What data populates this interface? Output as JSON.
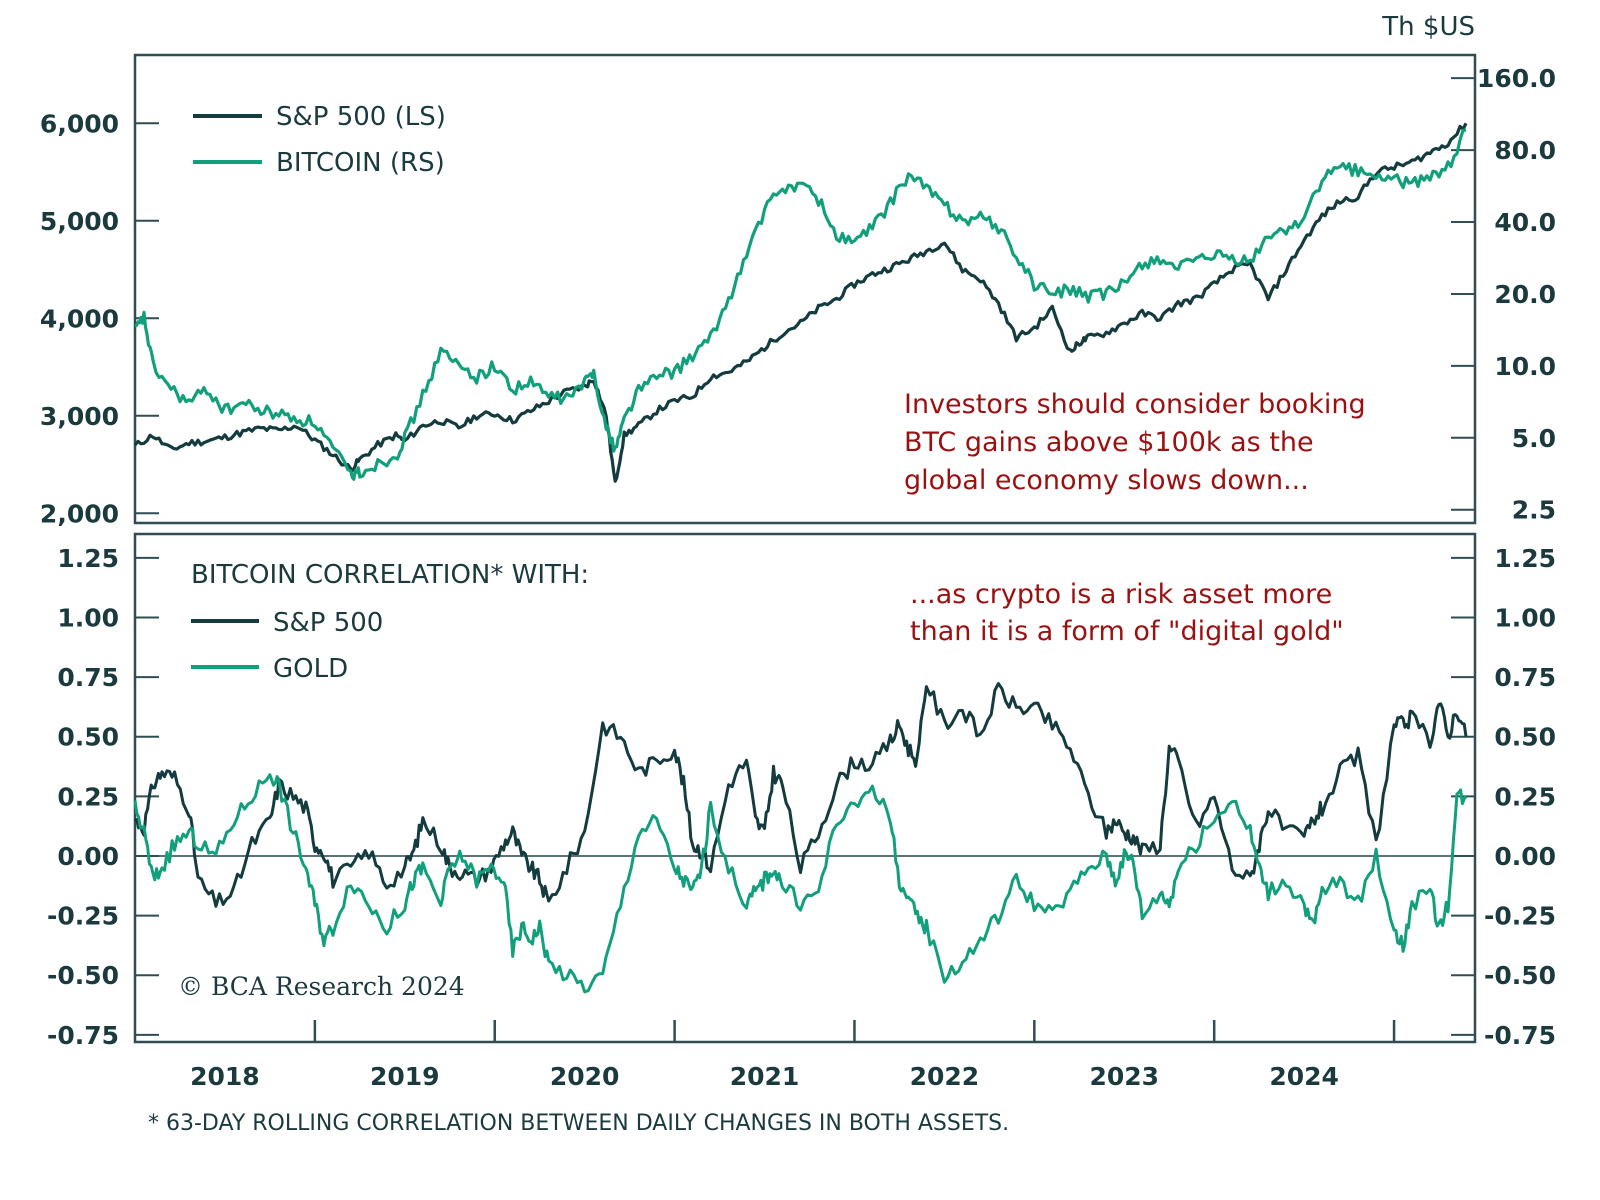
{
  "chart_data": [
    {
      "type": "line",
      "panel": "top",
      "title": "",
      "right_axis_unit": "Th $US",
      "x_tick_labels": [
        "2018",
        "2019",
        "2020",
        "2021",
        "2022",
        "2023",
        "2024"
      ],
      "xlim": [
        2017.5,
        2024.95
      ],
      "left_axis": {
        "label": "",
        "ticks": [
          2000,
          3000,
          4000,
          5000,
          6000
        ],
        "tick_labels": [
          "2,000",
          "3,000",
          "4,000",
          "5,000",
          "6,000"
        ],
        "range": [
          1900,
          6700
        ]
      },
      "right_axis": {
        "scale": "log",
        "ticks": [
          2.5,
          5,
          10,
          20,
          40,
          80,
          160
        ],
        "tick_labels": [
          "2.5",
          "5.0",
          "10.0",
          "20.0",
          "40.0",
          "80.0",
          "160.0"
        ],
        "range": [
          2.2,
          200
        ]
      },
      "legend": {
        "placement": "top-left",
        "entries": [
          {
            "name": "S&P 500 (LS)",
            "color": "#143c3f"
          },
          {
            "name": "BITCOIN (RS)",
            "color": "#12a07c"
          }
        ]
      },
      "annotation": [
        "Investors should consider booking",
        "BTC gains above $100k as the",
        "global economy slows down..."
      ],
      "series": [
        {
          "name": "S&P 500 (LS)",
          "axis": "left",
          "color": "#143c3f",
          "x": [
            2017.5,
            2017.6,
            2017.7,
            2017.8,
            2017.9,
            2018.0,
            2018.1,
            2018.2,
            2018.3,
            2018.4,
            2018.5,
            2018.6,
            2018.7,
            2018.75,
            2018.85,
            2018.95,
            2019.0,
            2019.1,
            2019.2,
            2019.3,
            2019.4,
            2019.5,
            2019.6,
            2019.7,
            2019.8,
            2019.9,
            2020.0,
            2020.05,
            2020.12,
            2020.17,
            2020.22,
            2020.3,
            2020.4,
            2020.5,
            2020.6,
            2020.7,
            2020.8,
            2020.9,
            2021.0,
            2021.1,
            2021.2,
            2021.3,
            2021.4,
            2021.5,
            2021.6,
            2021.7,
            2021.8,
            2021.9,
            2022.0,
            2022.1,
            2022.2,
            2022.3,
            2022.4,
            2022.5,
            2022.6,
            2022.7,
            2022.75,
            2022.8,
            2022.9,
            2023.0,
            2023.1,
            2023.2,
            2023.3,
            2023.4,
            2023.5,
            2023.6,
            2023.7,
            2023.8,
            2023.9,
            2024.0,
            2024.1,
            2024.2,
            2024.3,
            2024.4,
            2024.5,
            2024.6,
            2024.7,
            2024.8,
            2024.9
          ],
          "values": [
            2690,
            2800,
            2650,
            2720,
            2740,
            2780,
            2830,
            2870,
            2850,
            2900,
            2750,
            2600,
            2450,
            2550,
            2700,
            2800,
            2740,
            2900,
            2950,
            2880,
            3000,
            3020,
            2950,
            3050,
            3150,
            3250,
            3300,
            3380,
            3000,
            2300,
            2800,
            2900,
            3050,
            3150,
            3200,
            3400,
            3450,
            3550,
            3700,
            3850,
            3950,
            4100,
            4200,
            4350,
            4450,
            4520,
            4600,
            4690,
            4780,
            4500,
            4400,
            4150,
            3800,
            3900,
            4100,
            3650,
            3750,
            3800,
            3850,
            3950,
            4050,
            4000,
            4150,
            4200,
            4350,
            4500,
            4550,
            4200,
            4500,
            4800,
            5050,
            5200,
            5250,
            5500,
            5550,
            5600,
            5700,
            5800,
            6000
          ]
        },
        {
          "name": "BITCOIN (RS)",
          "axis": "right",
          "color": "#12a07c",
          "x": [
            2017.5,
            2017.55,
            2017.6,
            2017.7,
            2017.8,
            2017.9,
            2018.0,
            2018.1,
            2018.2,
            2018.3,
            2018.4,
            2018.5,
            2018.6,
            2018.7,
            2018.75,
            2018.85,
            2018.95,
            2019.0,
            2019.1,
            2019.2,
            2019.3,
            2019.4,
            2019.5,
            2019.6,
            2019.7,
            2019.8,
            2019.9,
            2020.0,
            2020.05,
            2020.12,
            2020.17,
            2020.22,
            2020.3,
            2020.4,
            2020.5,
            2020.6,
            2020.7,
            2020.8,
            2020.9,
            2021.0,
            2021.1,
            2021.2,
            2021.3,
            2021.4,
            2021.5,
            2021.6,
            2021.7,
            2021.8,
            2021.9,
            2022.0,
            2022.1,
            2022.2,
            2022.3,
            2022.4,
            2022.5,
            2022.6,
            2022.7,
            2022.8,
            2022.9,
            2023.0,
            2023.1,
            2023.2,
            2023.3,
            2023.4,
            2023.5,
            2023.6,
            2023.7,
            2023.8,
            2023.9,
            2024.0,
            2024.1,
            2024.2,
            2024.3,
            2024.4,
            2024.5,
            2024.6,
            2024.7,
            2024.8,
            2024.9
          ],
          "values": [
            14,
            16,
            10,
            8,
            7,
            8,
            6.5,
            7,
            6.5,
            6.3,
            6,
            5.8,
            4.5,
            3.5,
            3.6,
            3.9,
            4.2,
            5,
            7.5,
            11.5,
            10,
            9,
            10,
            8,
            8.5,
            7.5,
            7.3,
            8.5,
            9.5,
            5.5,
            4.5,
            6,
            8,
            9,
            9.5,
            11,
            13,
            19,
            29,
            45,
            55,
            58,
            50,
            35,
            33,
            38,
            48,
            63,
            56,
            47,
            41,
            42,
            38,
            29,
            22,
            20,
            21,
            19.5,
            20,
            22,
            27,
            28,
            26,
            27,
            29,
            28,
            27,
            35,
            37,
            42,
            60,
            68,
            66,
            62,
            60,
            58,
            62,
            68,
            97
          ]
        }
      ]
    },
    {
      "type": "line",
      "panel": "bottom",
      "title": "BITCOIN CORRELATION* WITH:",
      "x_tick_labels": [
        "2018",
        "2019",
        "2020",
        "2021",
        "2022",
        "2023",
        "2024"
      ],
      "xlim": [
        2017.5,
        2024.95
      ],
      "ylim": [
        -0.78,
        1.35
      ],
      "y_ticks": [
        -0.75,
        -0.5,
        -0.25,
        0,
        0.25,
        0.5,
        0.75,
        1.0,
        1.25
      ],
      "y_tick_labels": [
        "-0.75",
        "-0.50",
        "-0.25",
        "0.00",
        "0.25",
        "0.50",
        "0.75",
        "1.00",
        "1.25"
      ],
      "legend": {
        "placement": "top-left",
        "entries": [
          {
            "name": "S&P 500",
            "color": "#143c3f"
          },
          {
            "name": "GOLD",
            "color": "#12a07c"
          }
        ]
      },
      "annotation": [
        "...as crypto is a risk asset more",
        "than it is a form of \"digital gold\""
      ],
      "footnote": "* 63-DAY ROLLING CORRELATION BETWEEN DAILY CHANGES IN BOTH ASSETS.",
      "copyright": "© BCA Research 2024",
      "series": [
        {
          "name": "S&P 500",
          "color": "#143c3f",
          "x": [
            2017.5,
            2017.55,
            2017.6,
            2017.65,
            2017.72,
            2017.8,
            2017.85,
            2017.95,
            2018.05,
            2018.15,
            2018.25,
            2018.3,
            2018.38,
            2018.45,
            2018.5,
            2018.55,
            2018.6,
            2018.7,
            2018.8,
            2018.9,
            2019.0,
            2019.05,
            2019.1,
            2019.2,
            2019.25,
            2019.32,
            2019.4,
            2019.48,
            2019.55,
            2019.6,
            2019.65,
            2019.7,
            2019.75,
            2019.8,
            2019.9,
            2020.0,
            2020.1,
            2020.2,
            2020.3,
            2020.4,
            2020.5,
            2020.55,
            2020.6,
            2020.65,
            2020.7,
            2020.8,
            2020.9,
            2020.95,
            2021.0,
            2021.05,
            2021.1,
            2021.2,
            2021.3,
            2021.4,
            2021.5,
            2021.6,
            2021.7,
            2021.75,
            2021.8,
            2021.85,
            2021.9,
            2022.0,
            2022.1,
            2022.2,
            2022.3,
            2022.4,
            2022.5,
            2022.6,
            2022.7,
            2022.8,
            2022.9,
            2022.95,
            2023.0,
            2023.05,
            2023.1,
            2023.2,
            2023.25,
            2023.3,
            2023.4,
            2023.5,
            2023.6,
            2023.7,
            2023.75,
            2023.8,
            2023.9,
            2024.0,
            2024.05,
            2024.1,
            2024.2,
            2024.3,
            2024.4,
            2024.5,
            2024.55,
            2024.6,
            2024.7,
            2024.75,
            2024.8,
            2024.85,
            2024.9
          ],
          "values": [
            0.15,
            0.12,
            0.3,
            0.35,
            0.33,
            0.2,
            -0.1,
            -0.2,
            -0.15,
            0.05,
            0.15,
            0.3,
            0.25,
            0.2,
            0.05,
            0.02,
            -0.1,
            -0.05,
            0.02,
            -0.12,
            -0.05,
            0.02,
            0.15,
            0.05,
            -0.05,
            -0.07,
            -0.1,
            -0.05,
            0.05,
            0.1,
            0.0,
            -0.05,
            -0.1,
            -0.2,
            -0.05,
            0.1,
            0.55,
            0.5,
            0.35,
            0.4,
            0.45,
            0.3,
            0.05,
            0.02,
            -0.05,
            0.3,
            0.4,
            0.15,
            0.1,
            0.35,
            0.3,
            -0.05,
            0.1,
            0.3,
            0.4,
            0.38,
            0.48,
            0.55,
            0.45,
            0.4,
            0.73,
            0.55,
            0.62,
            0.5,
            0.7,
            0.62,
            0.62,
            0.55,
            0.45,
            0.25,
            0.1,
            0.15,
            0.1,
            0.08,
            0.02,
            0.05,
            0.45,
            0.4,
            0.12,
            0.25,
            -0.05,
            -0.1,
            0.05,
            0.2,
            0.1,
            0.08,
            0.15,
            0.2,
            0.35,
            0.42,
            0.05,
            0.55,
            0.55,
            0.58,
            0.48,
            0.65,
            0.5,
            0.62,
            0.5
          ]
        },
        {
          "name": "GOLD",
          "color": "#12a07c",
          "x": [
            2017.5,
            2017.55,
            2017.6,
            2017.65,
            2017.72,
            2017.8,
            2017.85,
            2017.95,
            2018.05,
            2018.15,
            2018.25,
            2018.3,
            2018.38,
            2018.45,
            2018.5,
            2018.55,
            2018.6,
            2018.7,
            2018.8,
            2018.9,
            2019.0,
            2019.05,
            2019.1,
            2019.2,
            2019.25,
            2019.32,
            2019.4,
            2019.48,
            2019.55,
            2019.6,
            2019.65,
            2019.7,
            2019.75,
            2019.8,
            2019.9,
            2020.0,
            2020.1,
            2020.2,
            2020.3,
            2020.4,
            2020.5,
            2020.55,
            2020.6,
            2020.65,
            2020.7,
            2020.8,
            2020.9,
            2020.95,
            2021.0,
            2021.05,
            2021.1,
            2021.2,
            2021.3,
            2021.4,
            2021.5,
            2021.6,
            2021.7,
            2021.75,
            2021.8,
            2021.85,
            2021.9,
            2022.0,
            2022.1,
            2022.2,
            2022.3,
            2022.4,
            2022.5,
            2022.6,
            2022.7,
            2022.8,
            2022.9,
            2022.95,
            2023.0,
            2023.05,
            2023.1,
            2023.2,
            2023.25,
            2023.3,
            2023.4,
            2023.5,
            2023.6,
            2023.7,
            2023.75,
            2023.8,
            2023.9,
            2024.0,
            2024.05,
            2024.1,
            2024.2,
            2024.3,
            2024.4,
            2024.5,
            2024.55,
            2024.6,
            2024.7,
            2024.75,
            2024.8,
            2024.85,
            2024.9
          ],
          "values": [
            0.2,
            0.1,
            -0.1,
            -0.05,
            0.05,
            0.1,
            0.05,
            0.0,
            0.15,
            0.25,
            0.35,
            0.3,
            0.1,
            -0.05,
            -0.2,
            -0.35,
            -0.3,
            -0.1,
            -0.2,
            -0.3,
            -0.2,
            -0.1,
            -0.05,
            -0.2,
            -0.05,
            0.0,
            -0.1,
            -0.05,
            -0.1,
            -0.4,
            -0.3,
            -0.35,
            -0.3,
            -0.45,
            -0.5,
            -0.55,
            -0.5,
            -0.2,
            0.1,
            0.15,
            -0.05,
            -0.1,
            -0.15,
            -0.05,
            0.2,
            -0.05,
            -0.2,
            -0.15,
            -0.1,
            -0.05,
            -0.12,
            -0.2,
            -0.15,
            0.15,
            0.2,
            0.3,
            0.15,
            -0.1,
            -0.2,
            -0.25,
            -0.3,
            -0.5,
            -0.45,
            -0.35,
            -0.25,
            -0.1,
            -0.2,
            -0.25,
            -0.15,
            -0.05,
            0.0,
            -0.1,
            0.0,
            -0.02,
            -0.25,
            -0.15,
            -0.2,
            -0.05,
            0.05,
            0.15,
            0.25,
            0.1,
            -0.05,
            -0.15,
            -0.1,
            -0.2,
            -0.3,
            -0.15,
            -0.1,
            -0.2,
            0.0,
            -0.3,
            -0.38,
            -0.2,
            -0.15,
            -0.3,
            -0.2,
            0.25,
            0.25
          ]
        }
      ]
    }
  ]
}
